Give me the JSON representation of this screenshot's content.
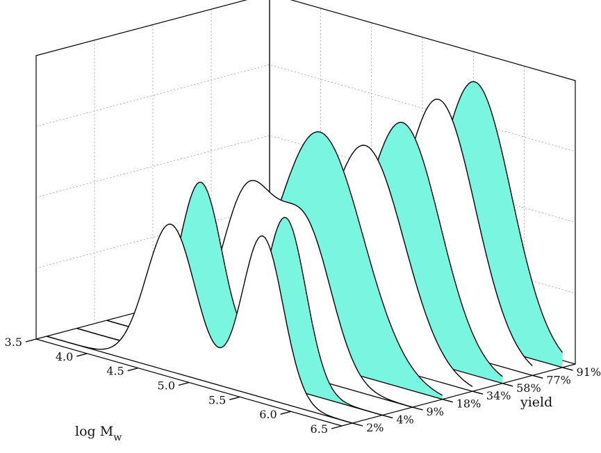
{
  "chart_data": {
    "type": "area",
    "view": "3d-waterfall",
    "x": {
      "label_main": "log M",
      "label_sub": "w",
      "ticks": [
        3.5,
        4.0,
        4.5,
        5.0,
        5.5,
        6.0,
        6.5
      ],
      "tick_labels": [
        "3.5",
        "4.0",
        "4.5",
        "5.0",
        "5.5",
        "6.0",
        "6.5"
      ],
      "range": [
        3.5,
        6.5
      ]
    },
    "y": {
      "label": "yield",
      "categories": [
        "2%",
        "4%",
        "9%",
        "18%",
        "34%",
        "58%",
        "77%",
        "91%"
      ]
    },
    "z": {
      "range": [
        0,
        1
      ]
    },
    "series": [
      {
        "name": "2%",
        "peaks": [
          {
            "mu": 4.72,
            "sigma": 0.24,
            "h": 0.52
          },
          {
            "mu": 5.62,
            "sigma": 0.2,
            "h": 0.57
          }
        ],
        "fill": "#ffffff"
      },
      {
        "name": "4%",
        "peaks": [
          {
            "mu": 4.72,
            "sigma": 0.22,
            "h": 0.64
          },
          {
            "mu": 5.55,
            "sigma": 0.2,
            "h": 0.6
          }
        ],
        "fill": "#7af5df"
      },
      {
        "name": "9%",
        "peaks": [
          {
            "mu": 4.88,
            "sigma": 0.26,
            "h": 0.58
          },
          {
            "mu": 5.45,
            "sigma": 0.26,
            "h": 0.52
          }
        ],
        "fill": "#ffffff"
      },
      {
        "name": "18%",
        "peaks": [
          {
            "mu": 5.3,
            "sigma": 0.42,
            "h": 0.82
          }
        ],
        "fill": "#7af5df"
      },
      {
        "name": "34%",
        "peaks": [
          {
            "mu": 5.45,
            "sigma": 0.38,
            "h": 0.76
          }
        ],
        "fill": "#ffffff"
      },
      {
        "name": "58%",
        "peaks": [
          {
            "mu": 5.52,
            "sigma": 0.37,
            "h": 0.82
          }
        ],
        "fill": "#7af5df"
      },
      {
        "name": "77%",
        "peaks": [
          {
            "mu": 5.58,
            "sigma": 0.36,
            "h": 0.88
          }
        ],
        "fill": "#ffffff"
      },
      {
        "name": "91%",
        "peaks": [
          {
            "mu": 5.64,
            "sigma": 0.36,
            "h": 0.92
          }
        ],
        "fill": "#7af5df"
      }
    ],
    "grid": true,
    "colors": {
      "accent": "#7af5df",
      "alt": "#ffffff"
    }
  }
}
